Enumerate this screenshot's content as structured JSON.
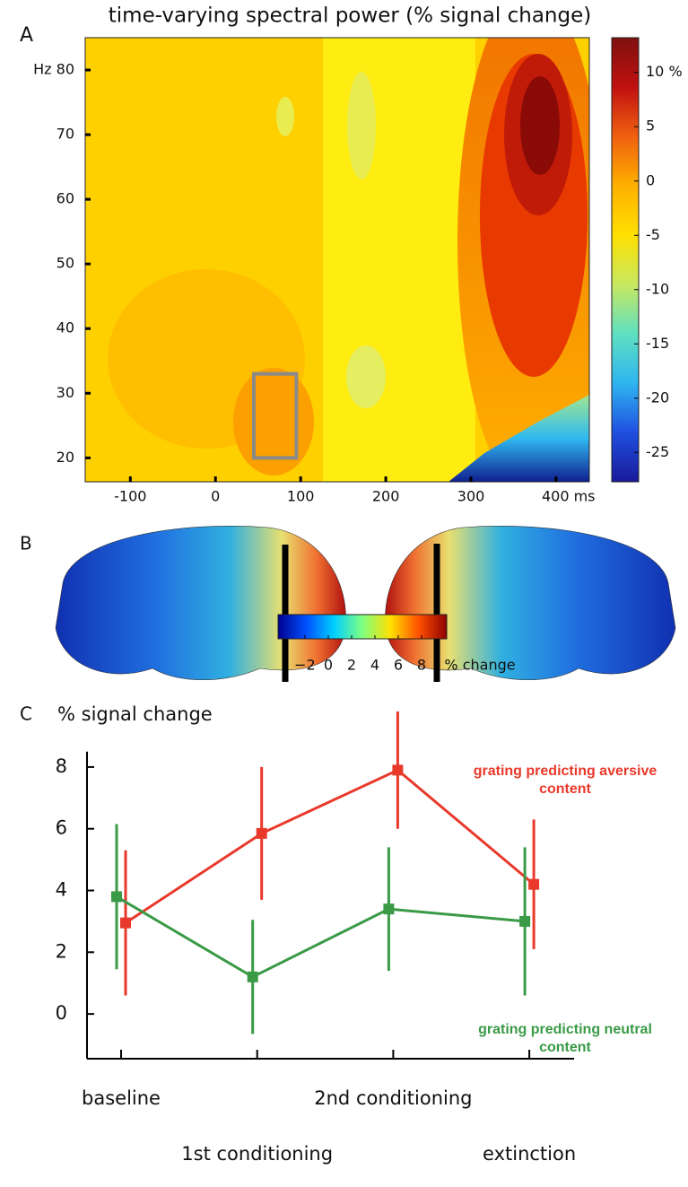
{
  "chart_data": [
    {
      "type": "heatmap",
      "panel_label": "A",
      "title": "time-varying spectral power (% signal change)",
      "xlim": [
        -153,
        439
      ],
      "ylim": [
        16.3,
        85
      ],
      "xticks": [
        -100,
        0,
        100,
        200,
        300,
        {
          "value": 400,
          "label": "400 ms"
        }
      ],
      "yticks": [
        20,
        30,
        40,
        50,
        60,
        70,
        {
          "value": 80,
          "label": "Hz 80"
        }
      ],
      "highlight_box": {
        "x": [
          45,
          95
        ],
        "y": [
          20,
          33
        ],
        "color": "#8a8a8a"
      },
      "colorbar": {
        "lim": [
          -27.7,
          13.2
        ],
        "ticks": [
          {
            "value": 10,
            "label": "10 %"
          },
          5,
          0,
          -5,
          -10,
          -15,
          -20,
          -25
        ],
        "colormap": [
          "#1a1a9a",
          "#1f4fe0",
          "#2fb5f0",
          "#5fe0c0",
          "#c8e860",
          "#ffe000",
          "#ffb000",
          "#f06010",
          "#c01010",
          "#801010"
        ]
      }
    },
    {
      "type": "brain",
      "panel_label": "B",
      "colorbar": {
        "lim": [
          -4.3,
          10.15
        ],
        "label": "% change",
        "ticks": [
          {
            "value": -2,
            "label": "−2"
          },
          0,
          2,
          4,
          6,
          8
        ],
        "colormap": [
          "#00008f",
          "#0050ff",
          "#00d0ff",
          "#80ff80",
          "#ffe000",
          "#ff5000",
          "#900000"
        ]
      }
    },
    {
      "type": "line",
      "panel_label": "C",
      "ylabel": "% signal change",
      "categories": [
        "baseline",
        "1st conditioning",
        "2nd conditioning",
        "extinction"
      ],
      "ylim": [
        -1.45,
        8.5
      ],
      "yticks": [
        0,
        2,
        4,
        6,
        8
      ],
      "series": [
        {
          "name": "grating predicting aversive content",
          "color": "#e8392b",
          "values": [
            2.95,
            5.85,
            7.9,
            4.2
          ],
          "errors": [
            2.35,
            2.15,
            1.9,
            2.1
          ]
        },
        {
          "name": "grating predicting neutral content",
          "color": "#3a9a46",
          "values": [
            3.8,
            1.2,
            3.4,
            3.0
          ],
          "errors": [
            2.35,
            1.85,
            2.0,
            2.4
          ]
        }
      ]
    }
  ]
}
